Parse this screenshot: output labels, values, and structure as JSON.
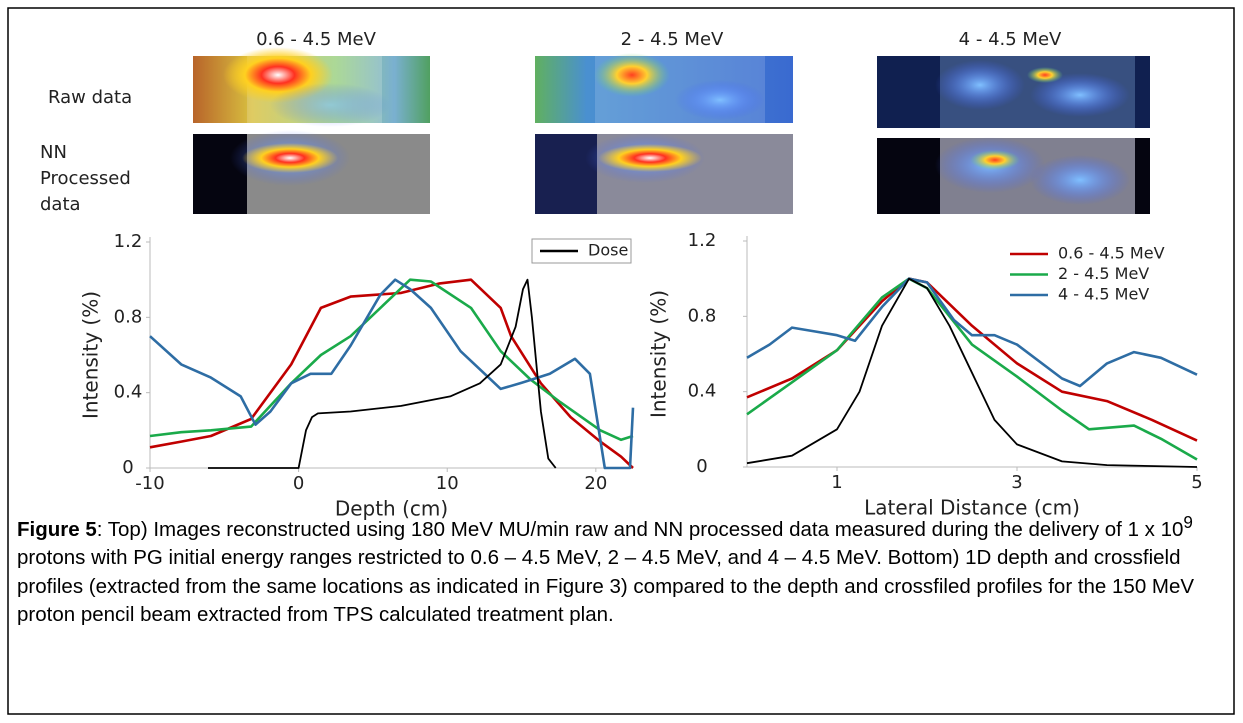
{
  "image_panel": {
    "column_titles": [
      "0.6 - 4.5 MeV",
      "2 - 4.5 MeV",
      "4 - 4.5 MeV"
    ],
    "row_labels": [
      "Raw data",
      "NN Processed data"
    ]
  },
  "chart_data": [
    {
      "type": "line",
      "xlabel": "Depth (cm)",
      "ylabel": "Intensity (%)",
      "xlim": [
        -10,
        22.5
      ],
      "xticks": [
        -10,
        0,
        10,
        20
      ],
      "ylim": [
        0,
        1.2
      ],
      "yticks": [
        0,
        0.4,
        0.8,
        1.2
      ],
      "legend": "upper right",
      "series": [
        {
          "color": "#c00000",
          "x": [
            -10,
            -7.9,
            -5.9,
            -3.2,
            -0.5,
            1.5,
            3.5,
            6.9,
            9.5,
            11.6,
            13.6,
            14.3,
            16.3,
            18.3,
            20.3,
            21.7,
            22.5
          ],
          "values": [
            0.11,
            0.14,
            0.17,
            0.26,
            0.55,
            0.85,
            0.91,
            0.93,
            0.98,
            1.0,
            0.85,
            0.7,
            0.45,
            0.27,
            0.14,
            0.06,
            0.0
          ]
        },
        {
          "color": "#1aaa4a",
          "x": [
            -10,
            -7.9,
            -5.9,
            -3.2,
            -0.5,
            1.5,
            3.5,
            5.5,
            7.5,
            8.9,
            11.6,
            13.6,
            15.6,
            17.6,
            20.3,
            21.7,
            22.5
          ],
          "values": [
            0.17,
            0.19,
            0.2,
            0.22,
            0.45,
            0.6,
            0.7,
            0.85,
            1.0,
            0.99,
            0.85,
            0.62,
            0.47,
            0.35,
            0.2,
            0.15,
            0.17
          ]
        },
        {
          "color": "#2e6da4",
          "x": [
            -10,
            -7.9,
            -5.9,
            -3.9,
            -2.9,
            -1.9,
            -0.5,
            0.8,
            2.2,
            3.5,
            5.5,
            6.5,
            7.5,
            8.9,
            10.9,
            13.6,
            14.9,
            16.9,
            18.6,
            19.6,
            20.6,
            22.3,
            22.5
          ],
          "values": [
            0.7,
            0.55,
            0.48,
            0.38,
            0.23,
            0.3,
            0.45,
            0.5,
            0.5,
            0.65,
            0.92,
            1.0,
            0.95,
            0.85,
            0.62,
            0.42,
            0.45,
            0.5,
            0.58,
            0.5,
            0.0,
            0.0,
            0.32
          ]
        },
        {
          "name": "Dose",
          "color": "#000000",
          "x": [
            -6.1,
            0,
            0.5,
            0.9,
            1.3,
            3.5,
            6.9,
            10.2,
            12.2,
            13.6,
            14.6,
            15.1,
            15.4,
            15.7,
            16.3,
            16.8,
            17.3
          ],
          "values": [
            0,
            0,
            0.2,
            0.27,
            0.29,
            0.3,
            0.33,
            0.38,
            0.45,
            0.55,
            0.75,
            0.95,
            1.0,
            0.8,
            0.3,
            0.05,
            0
          ]
        }
      ]
    },
    {
      "type": "line",
      "xlabel": "Lateral Distance (cm)",
      "ylabel": "Intensity (%)",
      "xlim": [
        0,
        5
      ],
      "xticks": [
        1,
        3,
        5
      ],
      "ylim": [
        0,
        1.2
      ],
      "yticks": [
        0,
        0.4,
        0.8,
        1.2
      ],
      "legend": "upper right",
      "series": [
        {
          "name": "0.6 - 4.5 MeV",
          "color": "#c00000",
          "x": [
            0,
            0.5,
            1,
            1.5,
            1.8,
            2,
            2.5,
            3,
            3.5,
            4,
            4.5,
            5
          ],
          "values": [
            0.37,
            0.47,
            0.62,
            0.88,
            1.0,
            0.98,
            0.75,
            0.55,
            0.4,
            0.35,
            0.25,
            0.14
          ]
        },
        {
          "name": "2 - 4.5 MeV",
          "color": "#1aaa4a",
          "x": [
            0,
            0.5,
            1,
            1.5,
            1.8,
            2,
            2.5,
            3,
            3.5,
            3.8,
            4.3,
            4.6,
            5
          ],
          "values": [
            0.28,
            0.45,
            0.62,
            0.9,
            1.0,
            0.95,
            0.65,
            0.48,
            0.3,
            0.2,
            0.22,
            0.15,
            0.04
          ]
        },
        {
          "name": "4 - 4.5 MeV",
          "color": "#2e6da4",
          "x": [
            0,
            0.25,
            0.5,
            0.75,
            1,
            1.2,
            1.5,
            1.8,
            2,
            2.3,
            2.5,
            2.75,
            3,
            3.5,
            3.7,
            4,
            4.3,
            4.6,
            5
          ],
          "values": [
            0.58,
            0.65,
            0.74,
            0.72,
            0.7,
            0.67,
            0.85,
            1.0,
            0.98,
            0.78,
            0.7,
            0.7,
            0.65,
            0.47,
            0.43,
            0.55,
            0.61,
            0.58,
            0.49
          ]
        },
        {
          "color": "#000000",
          "x": [
            0,
            0.5,
            1,
            1.25,
            1.5,
            1.8,
            2,
            2.25,
            2.5,
            2.75,
            3,
            3.5,
            4,
            5
          ],
          "values": [
            0.02,
            0.06,
            0.2,
            0.4,
            0.75,
            1.0,
            0.95,
            0.75,
            0.5,
            0.25,
            0.12,
            0.03,
            0.01,
            0.0
          ]
        }
      ]
    }
  ],
  "caption": {
    "label": "Figure 5",
    "text_before": ": Top) Images reconstructed using 180 MeV MU/min raw and NN processed data measured during the delivery of 1 x 10",
    "superscript": "9",
    "text_after": " protons with PG initial energy ranges restricted to 0.6 – 4.5 MeV, 2 – 4.5 MeV, and 4 – 4.5 MeV. Bottom) 1D depth and crossfield profiles (extracted from the same locations as indicated in Figure 3) compared to the depth and crossfiled profiles for the 150 MeV proton pencil beam extracted from TPS calculated treatment plan."
  }
}
